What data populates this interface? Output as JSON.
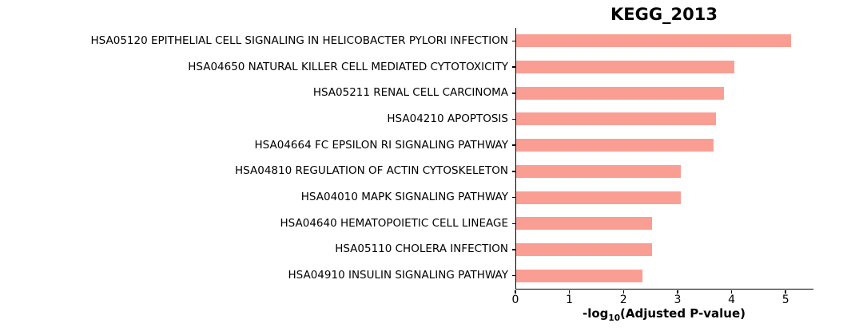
{
  "chart_data": {
    "type": "bar",
    "orientation": "horizontal",
    "title": "KEGG_2013",
    "xlabel": "-log10(Adjusted P-value)",
    "xlabel_parts": {
      "prefix": "-log",
      "sub": "10",
      "suffix": "(Adjusted P-value)"
    },
    "categories": [
      "HSA05120 EPITHELIAL CELL SIGNALING IN HELICOBACTER PYLORI INFECTION",
      "HSA04650 NATURAL KILLER CELL MEDIATED CYTOTOXICITY",
      "HSA05211 RENAL CELL CARCINOMA",
      "HSA04210 APOPTOSIS",
      "HSA04664 FC EPSILON RI SIGNALING PATHWAY",
      "HSA04810 REGULATION OF ACTIN CYTOSKELETON",
      "HSA04010 MAPK SIGNALING PATHWAY",
      "HSA04640 HEMATOPOIETIC CELL LINEAGE",
      "HSA05110 CHOLERA INFECTION",
      "HSA04910 INSULIN SIGNALING PATHWAY"
    ],
    "values": [
      5.09,
      4.03,
      3.85,
      3.7,
      3.65,
      3.05,
      3.05,
      2.51,
      2.51,
      2.34
    ],
    "xticks": [
      0,
      1,
      2,
      3,
      4,
      5
    ],
    "xlim": [
      0,
      5.5
    ],
    "grid": false,
    "legend": null,
    "colors": {
      "bar": "#fa9e94",
      "axis": "#000000",
      "background": "#ffffff",
      "text": "#000000"
    }
  }
}
